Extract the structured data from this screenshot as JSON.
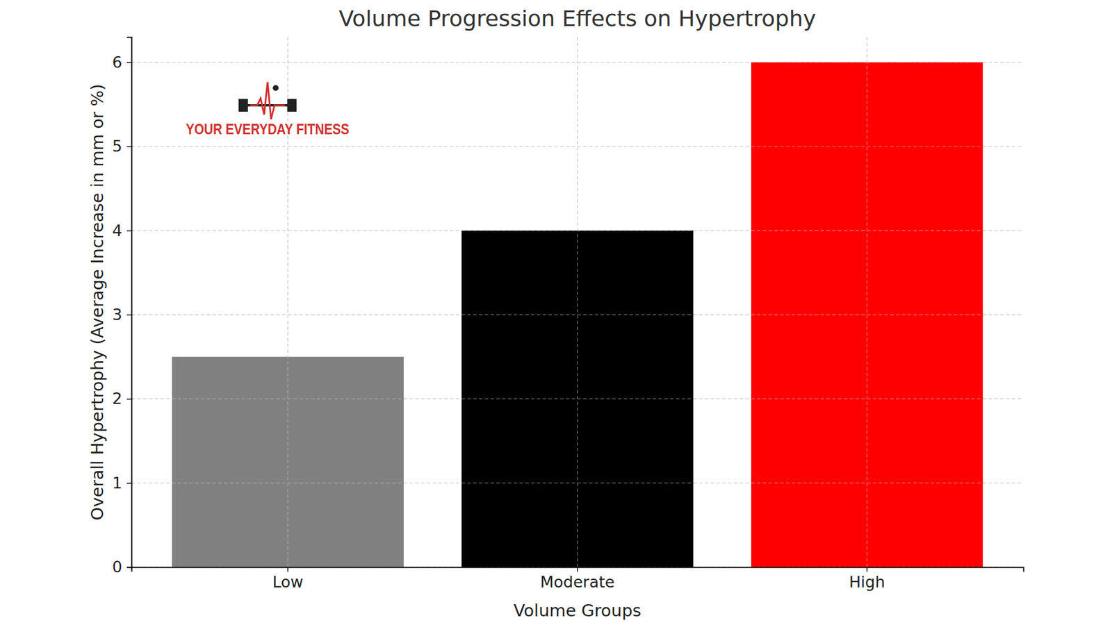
{
  "chart_data": {
    "type": "bar",
    "title": "Volume Progression Effects on Hypertrophy",
    "x_label": "Volume Groups",
    "y_label": "Overall Hypertrophy (Average Increase in mm or %)",
    "annotations": [
      "YOUR EVERYDAY FITNESS"
    ],
    "categories": [
      "Low",
      "Moderate",
      "High"
    ],
    "values": [
      2.5,
      4,
      6
    ],
    "colors": [
      "#808080",
      "#000000",
      "#ff0000"
    ],
    "ylim": [
      0,
      6.3
    ],
    "yticks": [
      0,
      1,
      2,
      3,
      4,
      5,
      6
    ],
    "grid": true
  }
}
